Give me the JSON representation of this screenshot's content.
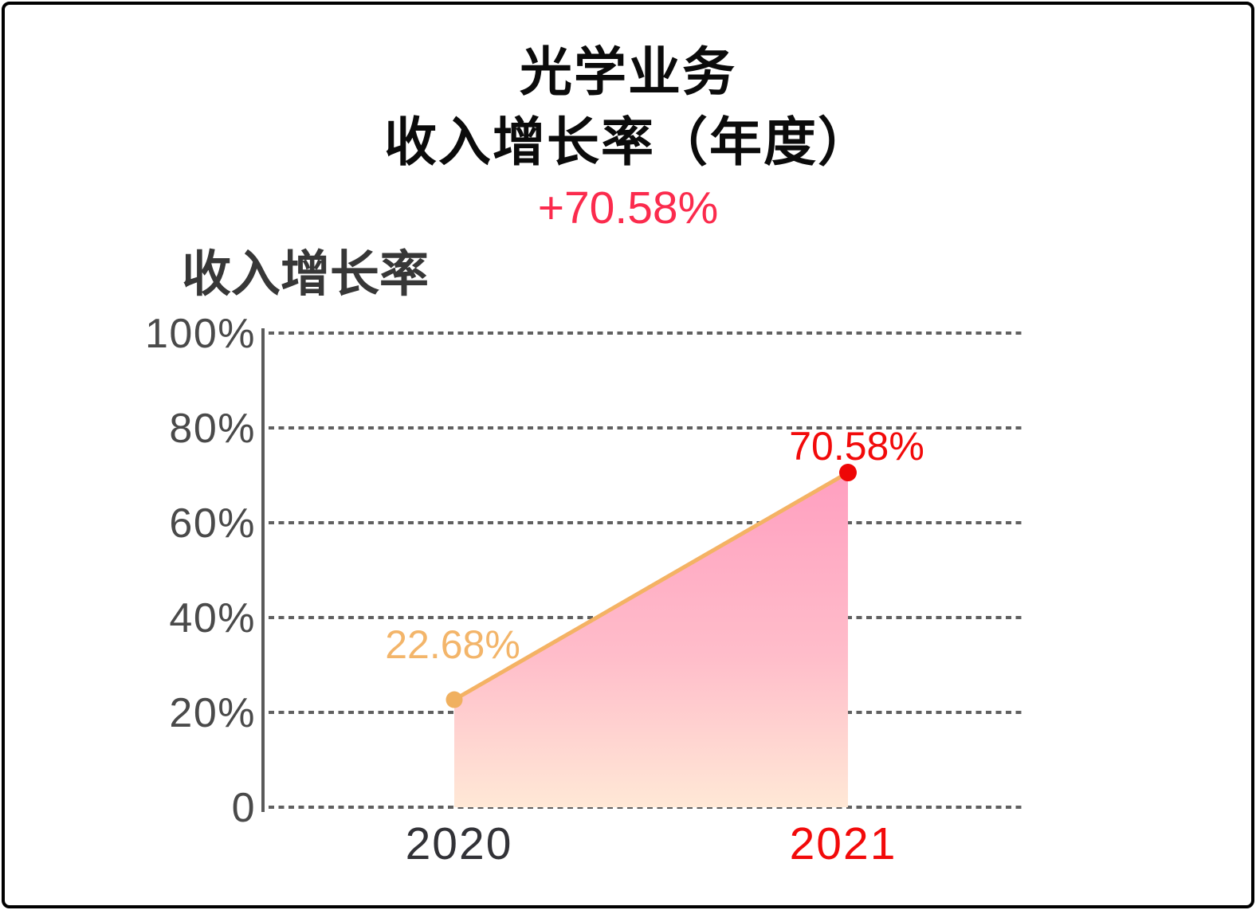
{
  "header": {
    "title_line1": "光学业务",
    "title_line2": "收入增长率（年度）",
    "change_value": "+70.58%"
  },
  "chart_data": {
    "type": "area",
    "title": "收入增长率",
    "categories": [
      "2020",
      "2021"
    ],
    "series": [
      {
        "name": "收入增长率",
        "values": [
          22.68,
          70.58
        ]
      }
    ],
    "point_labels": [
      "22.68%",
      "70.58%"
    ],
    "ytick_values": [
      100,
      80,
      60,
      40,
      20,
      0
    ],
    "ytick_labels": [
      "100%",
      "80%",
      "60%",
      "40%",
      "20%",
      "0"
    ],
    "ylim": [
      0,
      100
    ],
    "xlabel": "",
    "ylabel": "",
    "grid": "horizontal-dashed",
    "legend": "none"
  },
  "colors": {
    "border": "#000000",
    "title_text": "#0b0b0b",
    "delta_text": "#fb2b4d",
    "series_title_text": "#373737",
    "grid": "#606060",
    "axis": "#5a5a5a",
    "tick_text": "#4a4a4a",
    "line": "#f4b264",
    "point_2020": "#f0b05f",
    "point_2021": "#ee0606",
    "value_orange": "#f3b56a",
    "red_text": "#f20a0a",
    "xlabel_2020": "#323237",
    "area_top": "#ff9fc0",
    "area_mid": "#ffbdca",
    "area_bottom": "#ffe8d6"
  }
}
